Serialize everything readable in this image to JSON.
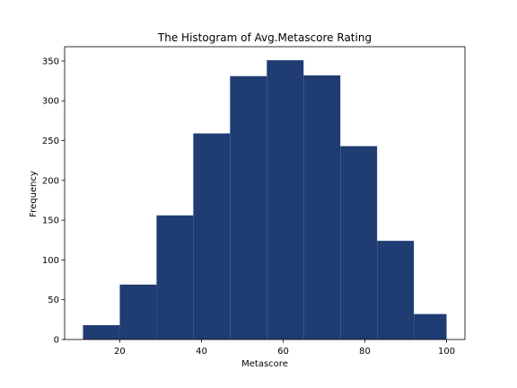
{
  "chart_data": {
    "type": "bar",
    "title": "The Histogram of Avg.Metascore Rating",
    "xlabel": "Metascore",
    "ylabel": "Frequency",
    "bin_edges": [
      11,
      20,
      29,
      38,
      47,
      56,
      65,
      74,
      83,
      92,
      100
    ],
    "values": [
      18,
      69,
      156,
      259,
      331,
      351,
      332,
      243,
      124,
      32
    ],
    "xlim": [
      6.5,
      104.5
    ],
    "ylim": [
      0,
      368
    ],
    "xticks": [
      20,
      40,
      60,
      80,
      100
    ],
    "yticks": [
      0,
      50,
      100,
      150,
      200,
      250,
      300,
      350
    ],
    "grid": false,
    "colors": {
      "bar": "#1f3d73",
      "axes": "#000000"
    }
  }
}
